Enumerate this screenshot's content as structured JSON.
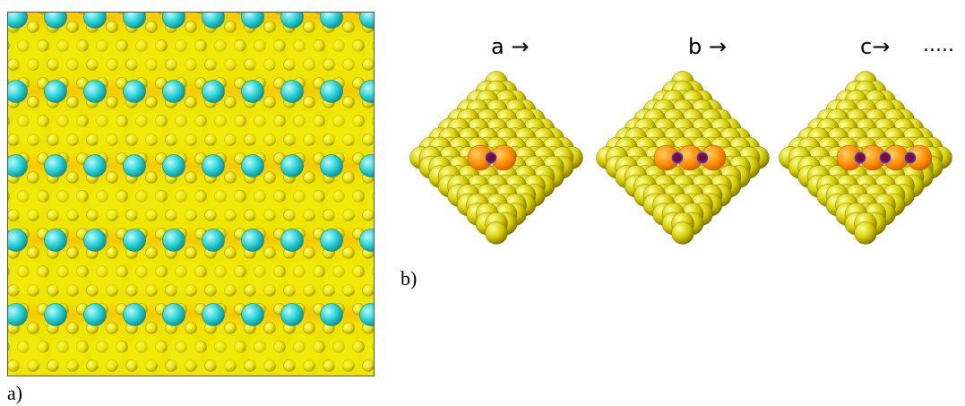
{
  "figure": {
    "panel_a_label": "a)",
    "panel_b_label": "b)",
    "sequence_labels": [
      "a →",
      "b →",
      "c→",
      "....."
    ],
    "colors": {
      "substrate": "#e8e000",
      "substrate_dark": "#b9a800",
      "adatom": "#27d4d8",
      "adsorbate": "#ff7a00",
      "molecule_atom": "#7b0a3a",
      "molecule_ring": "#3b3bd0"
    },
    "icons": [
      "atom-sphere",
      "arrow-right"
    ]
  }
}
